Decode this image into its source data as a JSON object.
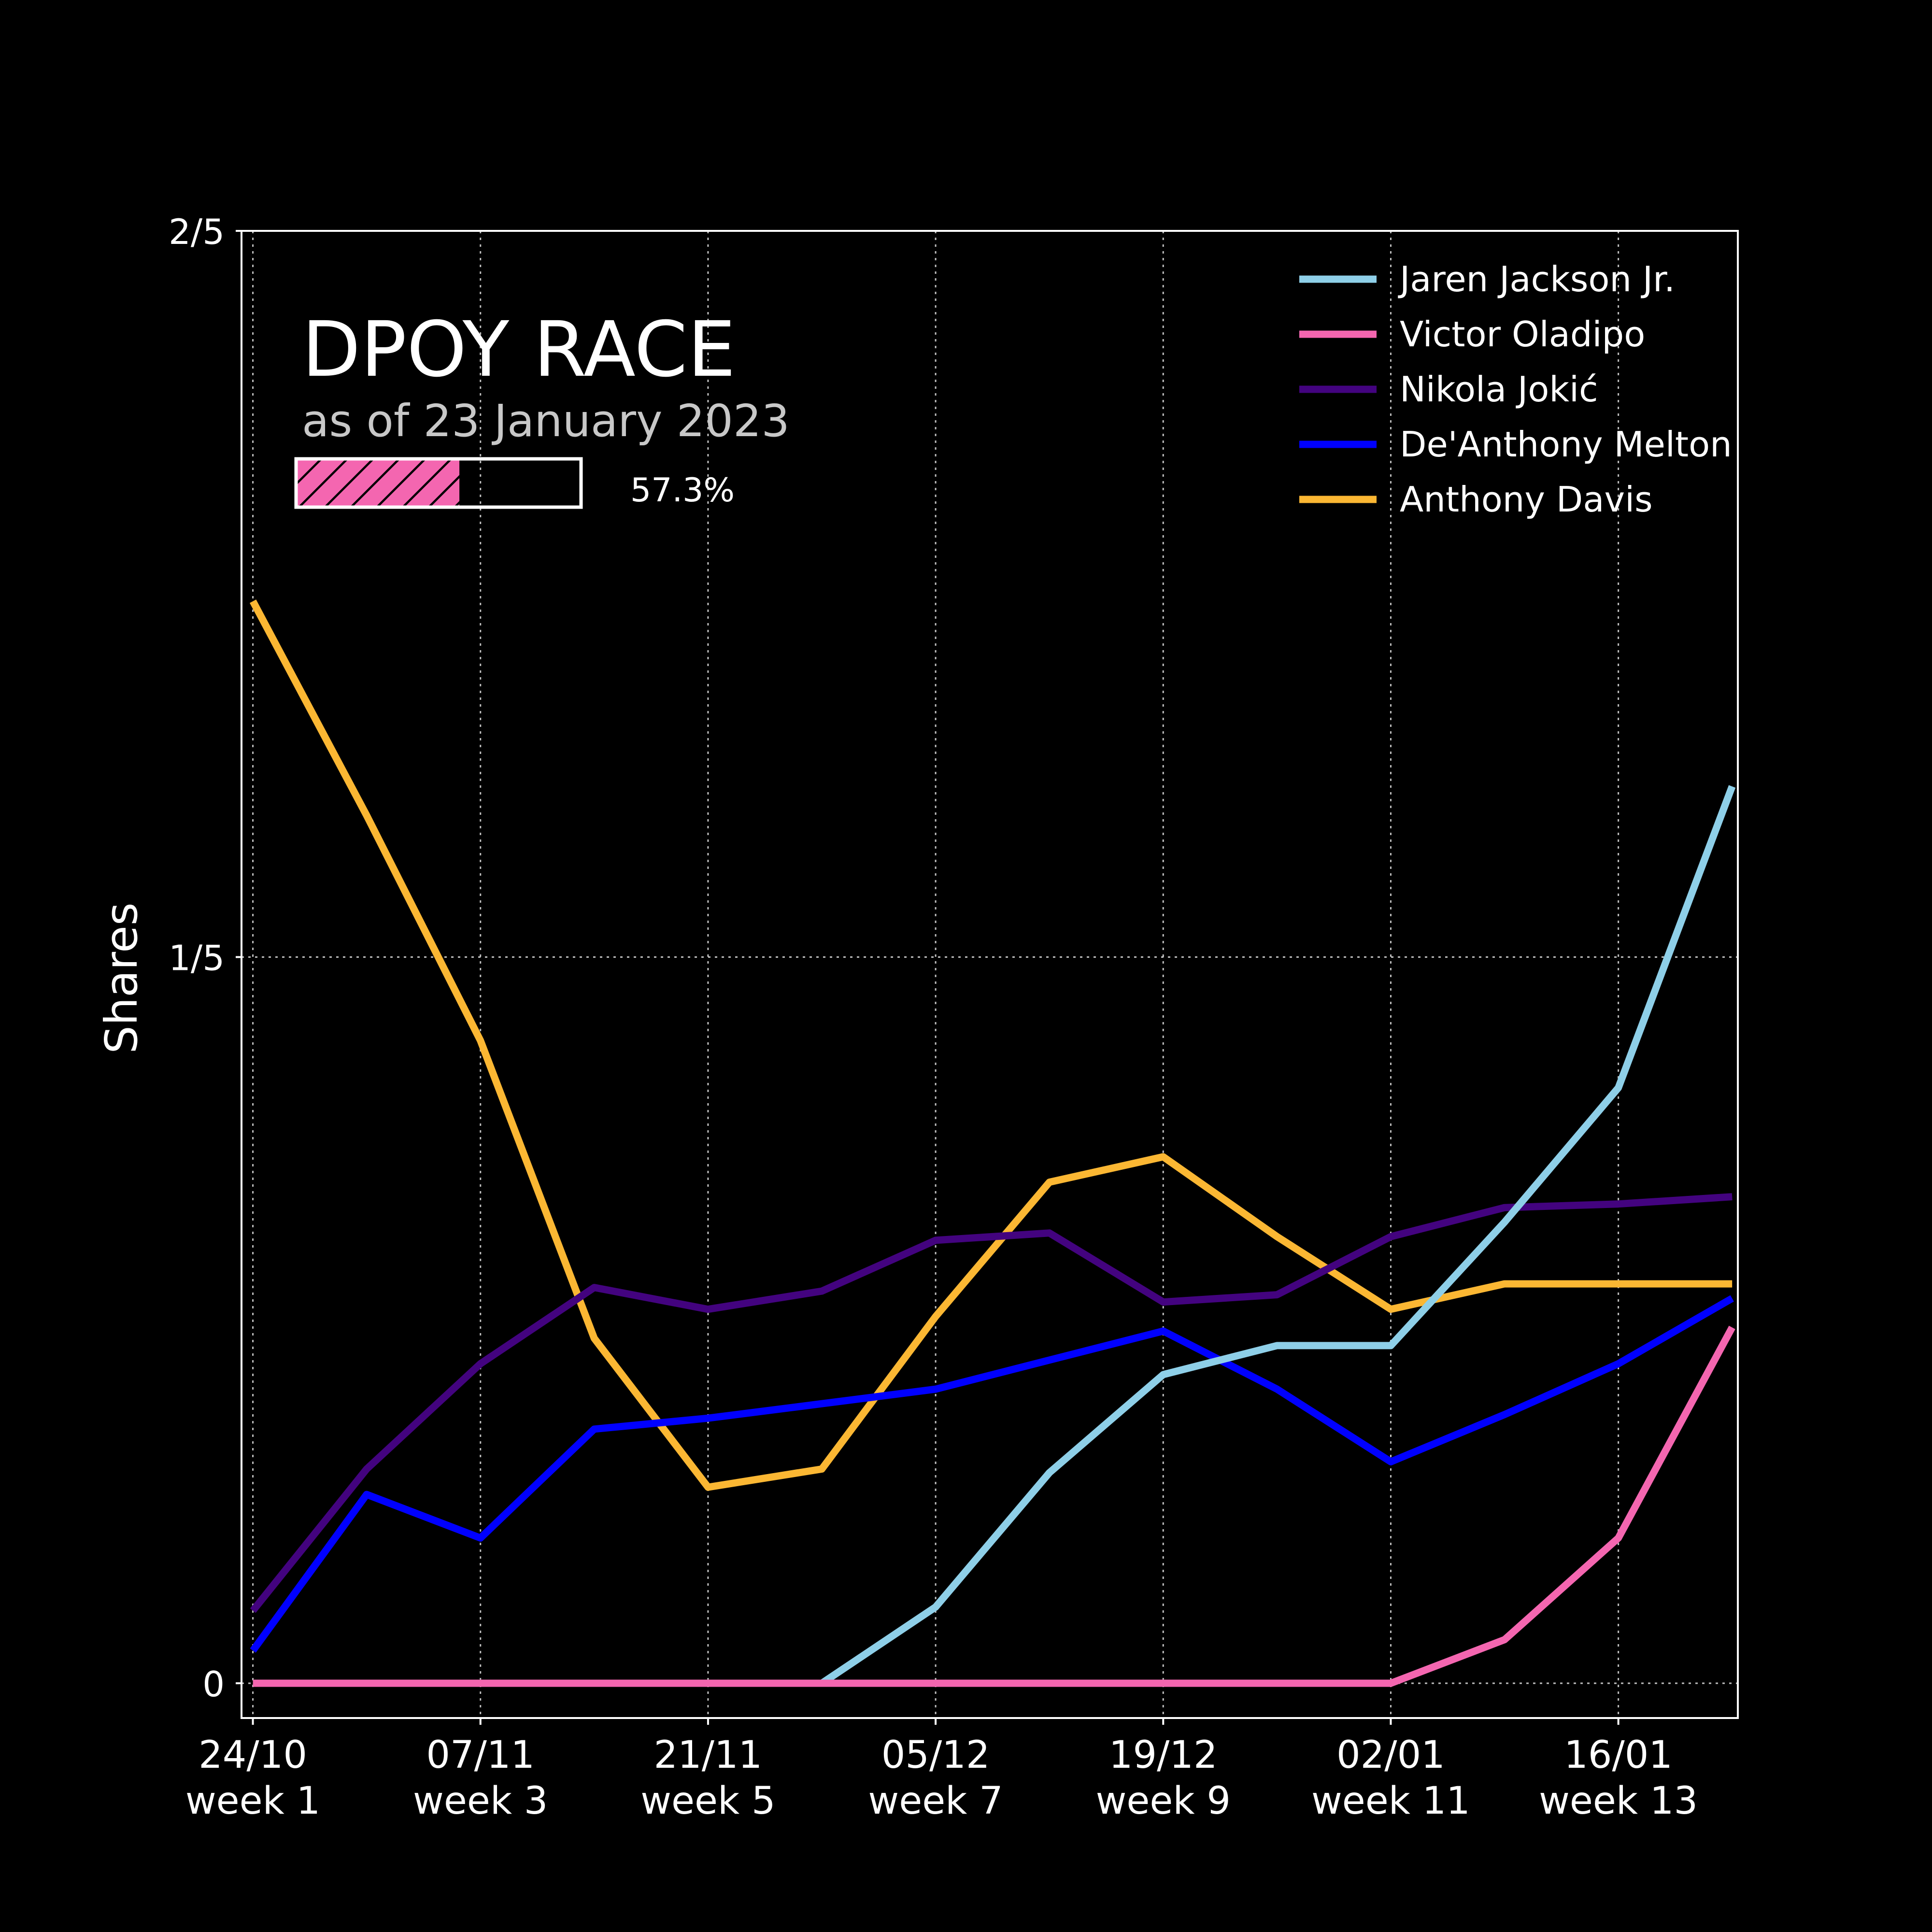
{
  "chart_data": {
    "type": "line",
    "title": "DPOY RACE",
    "subtitle": "as of 23 January 2023",
    "progress": {
      "value": 0.573,
      "label": "57.3%"
    },
    "xlabel": "",
    "ylabel": "Shares",
    "ylim": [
      0,
      0.4
    ],
    "yticks": [
      0,
      0.2,
      0.4
    ],
    "yticklabels": [
      "0",
      "1/5",
      "2/5"
    ],
    "x": [
      1,
      2,
      3,
      4,
      5,
      6,
      7,
      8,
      9,
      10,
      11,
      12,
      13,
      14
    ],
    "xlim": [
      0.9,
      14.05
    ],
    "xticks": [
      1,
      3,
      5,
      7,
      9,
      11,
      13
    ],
    "xticklabels": [
      [
        "24/10",
        "week 1"
      ],
      [
        "07/11",
        "week 3"
      ],
      [
        "21/11",
        "week 5"
      ],
      [
        "05/12",
        "week 7"
      ],
      [
        "19/12",
        "week 9"
      ],
      [
        "02/01",
        "week 11"
      ],
      [
        "16/01",
        "week 13"
      ]
    ],
    "grid": true,
    "legend_position": "top-right",
    "series": [
      {
        "name": "Jaren Jackson Jr.",
        "color": "#8ecfe8",
        "values": [
          null,
          null,
          null,
          null,
          null,
          0.0,
          0.021,
          0.058,
          0.085,
          0.093,
          0.093,
          0.127,
          0.164,
          0.247
        ]
      },
      {
        "name": "Victor Oladipo",
        "color": "#f466b0",
        "values": [
          0.0,
          0.0,
          0.0,
          0.0,
          0.0,
          0.0,
          0.0,
          0.0,
          0.0,
          0.0,
          0.0,
          0.012,
          0.04,
          0.098
        ]
      },
      {
        "name": "Nikola Jokić",
        "color": "#43037f",
        "values": [
          0.02,
          0.059,
          0.088,
          0.109,
          0.103,
          0.108,
          0.122,
          0.124,
          0.105,
          0.107,
          0.123,
          0.131,
          0.132,
          0.134
        ]
      },
      {
        "name": "De'Anthony Melton",
        "color": "#0000ff",
        "values": [
          0.009,
          0.052,
          0.04,
          0.07,
          0.073,
          0.077,
          0.081,
          0.089,
          0.097,
          0.081,
          0.061,
          0.074,
          0.088,
          0.106
        ]
      },
      {
        "name": "Anthony Davis",
        "color": "#fbb733",
        "values": [
          0.298,
          0.239,
          0.177,
          0.095,
          0.054,
          0.059,
          0.101,
          0.138,
          0.145,
          0.123,
          0.103,
          0.11,
          0.11,
          0.11
        ]
      }
    ]
  }
}
